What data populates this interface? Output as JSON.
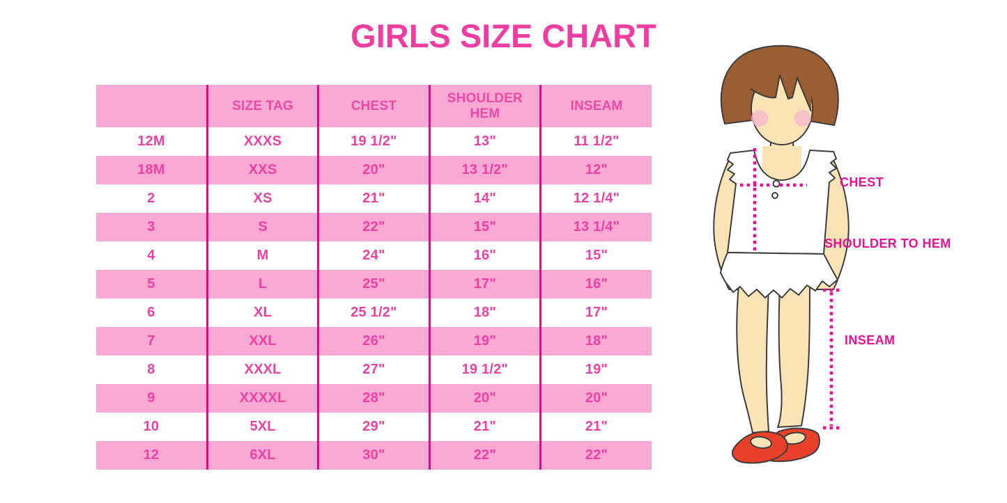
{
  "title": "GIRLS SIZE CHART",
  "chart_data": {
    "type": "table",
    "title": "GIRLS SIZE CHART",
    "columns": [
      "",
      "SIZE TAG",
      "CHEST",
      "SHOULDER HEM",
      "INSEAM"
    ],
    "rows": [
      [
        "12M",
        "XXXS",
        "19 1/2\"",
        "13\"",
        "11 1/2\""
      ],
      [
        "18M",
        "XXS",
        "20\"",
        "13 1/2\"",
        "12\""
      ],
      [
        "2",
        "XS",
        "21\"",
        "14\"",
        "12 1/4\""
      ],
      [
        "3",
        "S",
        "22\"",
        "15\"",
        "13 1/4\""
      ],
      [
        "4",
        "M",
        "24\"",
        "16\"",
        "15\""
      ],
      [
        "5",
        "L",
        "25\"",
        "17\"",
        "16\""
      ],
      [
        "6",
        "XL",
        "25 1/2\"",
        "18\"",
        "17\""
      ],
      [
        "7",
        "XXL",
        "26\"",
        "19\"",
        "18\""
      ],
      [
        "8",
        "XXXL",
        "27\"",
        "19 1/2\"",
        "19\""
      ],
      [
        "9",
        "XXXXL",
        "28\"",
        "20\"",
        "20\""
      ],
      [
        "10",
        "5XL",
        "29\"",
        "21\"",
        "21\""
      ],
      [
        "12",
        "6XL",
        "30\"",
        "22\"",
        "22\""
      ]
    ]
  },
  "figure": {
    "labels": {
      "chest": "CHEST",
      "shoulder_to_hem": "SHOULDER TO HEM",
      "inseam": "INSEAM"
    }
  },
  "colors": {
    "title_pink": "#f13da2",
    "row_pink": "#f9a9d4",
    "grid_magenta": "#da0f82",
    "table_text_pink": "#ef41a1",
    "measure_magenta": "#ec1094",
    "hair_brown": "#9b5e32",
    "skin": "#fae3b5",
    "shoe_red": "#e8402a"
  }
}
